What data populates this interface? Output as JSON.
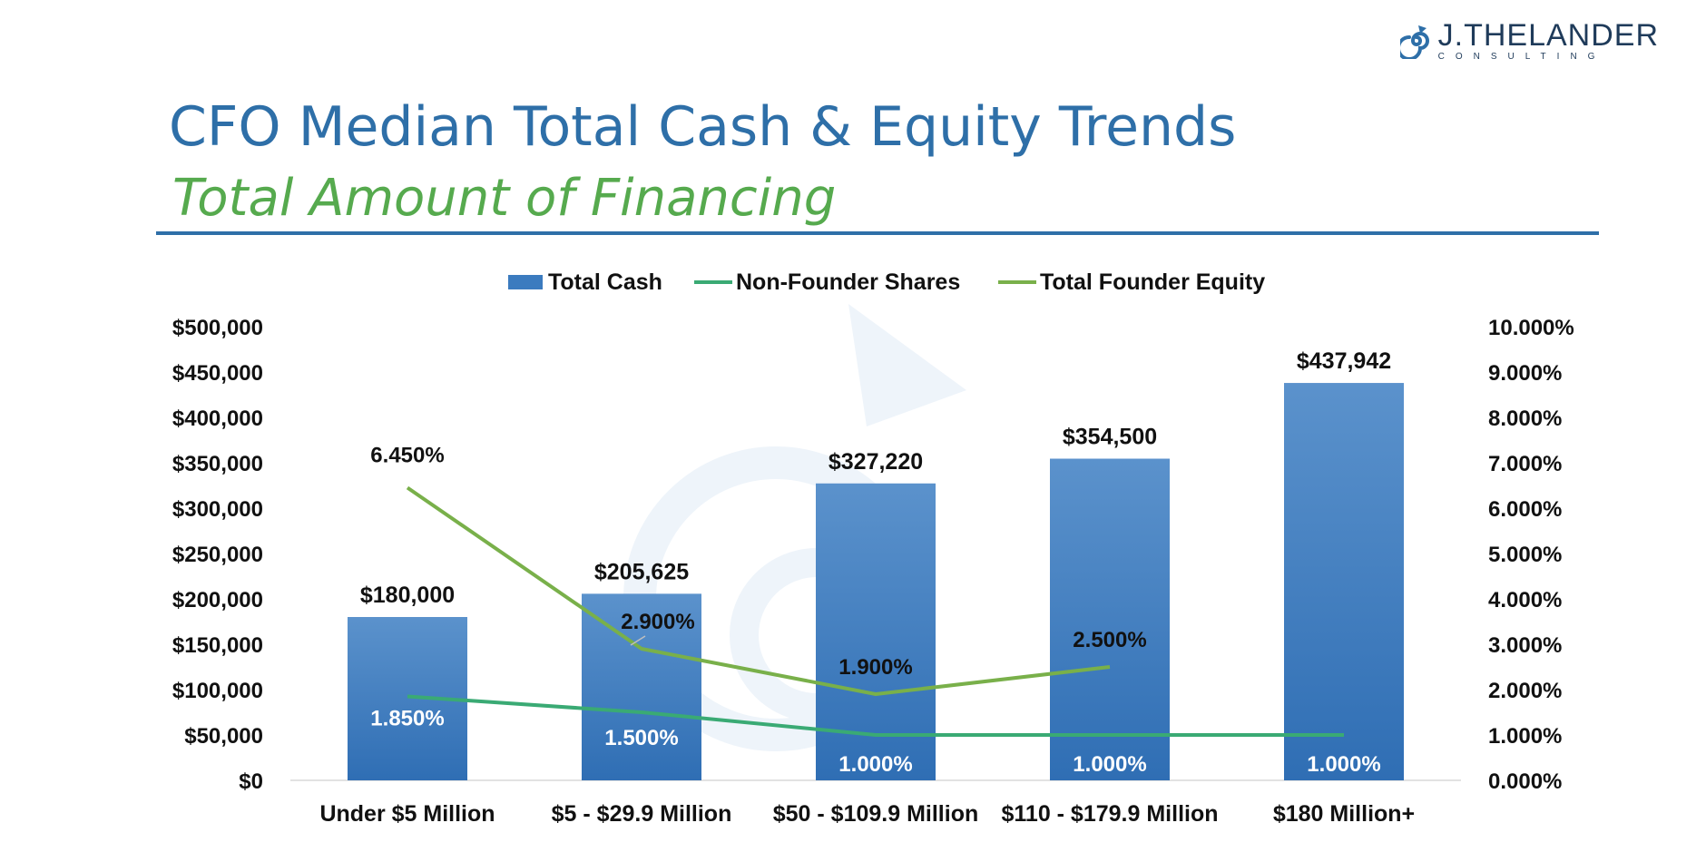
{
  "brand": {
    "name": "J.THELANDER",
    "sub": "CONSULTING"
  },
  "header": {
    "title": "CFO Median Total Cash & Equity Trends",
    "subtitle": "Total Amount of Financing"
  },
  "colors": {
    "title": "#2e6fa8",
    "subtitle": "#56aa4e",
    "bar": "#3b7bbf",
    "non_founder": "#3aaa74",
    "founder": "#79b04a",
    "watermark": "#e9f1f8"
  },
  "chart_data": {
    "type": "bar",
    "categories": [
      "Under $5 Million",
      "$5 - $29.9 Million",
      "$50 - $109.9 Million",
      "$110 - $179.9 Million",
      "$180 Million+"
    ],
    "legend_position": "top",
    "grid": false,
    "series": [
      {
        "name": "Total Cash",
        "type": "bar",
        "axis": "left",
        "values": [
          180000,
          205625,
          327220,
          354500,
          437942
        ],
        "labels": [
          "$180,000",
          "$205,625",
          "$327,220",
          "$354,500",
          "$437,942"
        ]
      },
      {
        "name": "Non-Founder Shares",
        "type": "line",
        "axis": "right",
        "values": [
          1.85,
          1.5,
          1.0,
          1.0,
          1.0
        ],
        "labels": [
          "1.850%",
          "1.500%",
          "1.000%",
          "1.000%",
          "1.000%"
        ]
      },
      {
        "name": "Total Founder Equity",
        "type": "line",
        "axis": "right",
        "values": [
          6.45,
          2.9,
          1.9,
          2.5,
          null
        ],
        "labels": [
          "6.450%",
          "2.900%",
          "1.900%",
          "2.500%",
          null
        ]
      }
    ],
    "y_left": {
      "range": [
        0,
        500000
      ],
      "ticks": [
        "$0",
        "$50,000",
        "$100,000",
        "$150,000",
        "$200,000",
        "$250,000",
        "$300,000",
        "$350,000",
        "$400,000",
        "$450,000",
        "$500,000"
      ]
    },
    "y_right": {
      "range": [
        0,
        10
      ],
      "ticks": [
        "0.000%",
        "1.000%",
        "2.000%",
        "3.000%",
        "4.000%",
        "5.000%",
        "6.000%",
        "7.000%",
        "8.000%",
        "9.000%",
        "10.000%"
      ]
    }
  }
}
